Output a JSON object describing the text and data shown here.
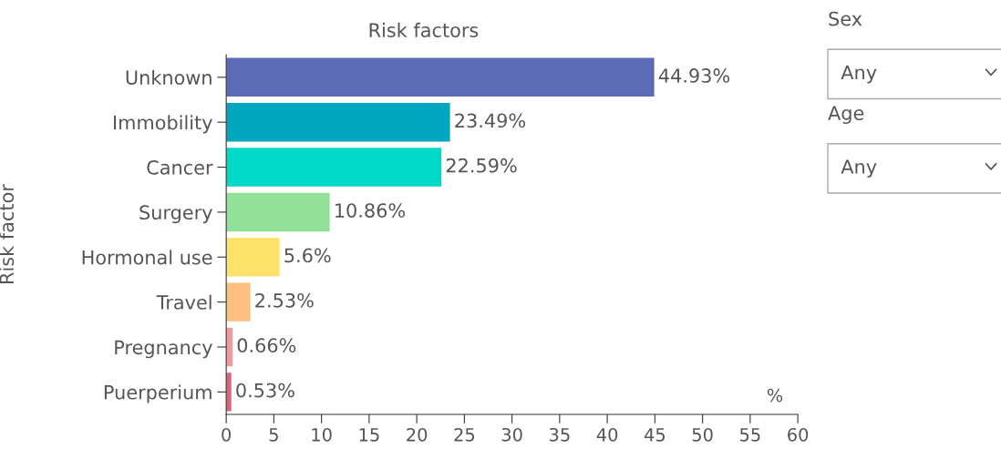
{
  "chart_data": {
    "type": "bar",
    "orientation": "horizontal",
    "title": "Risk factors",
    "ylabel": "Risk factor",
    "xlabel": "%",
    "categories": [
      "Unknown",
      "Immobility",
      "Cancer",
      "Surgery",
      "Hormonal use",
      "Travel",
      "Pregnancy",
      "Puerperium"
    ],
    "values": [
      44.93,
      23.49,
      22.59,
      10.86,
      5.6,
      2.53,
      0.66,
      0.53
    ],
    "colors": [
      "#5c6bb5",
      "#00a6c0",
      "#00d9c8",
      "#93e09b",
      "#fde26c",
      "#fdbf80",
      "#f49a9a",
      "#e2627a"
    ],
    "value_labels": [
      "44.93%",
      "23.49%",
      "22.59%",
      "10.86%",
      "5.6%",
      "2.53%",
      "0.66%",
      "0.53%"
    ],
    "xlim": [
      0,
      60
    ],
    "xticks": [
      0,
      5,
      10,
      15,
      20,
      25,
      30,
      35,
      40,
      45,
      50,
      55,
      60
    ],
    "grid": false,
    "legend": false,
    "annotations": [
      "Sex",
      "Any",
      "Age",
      "Any"
    ]
  }
}
